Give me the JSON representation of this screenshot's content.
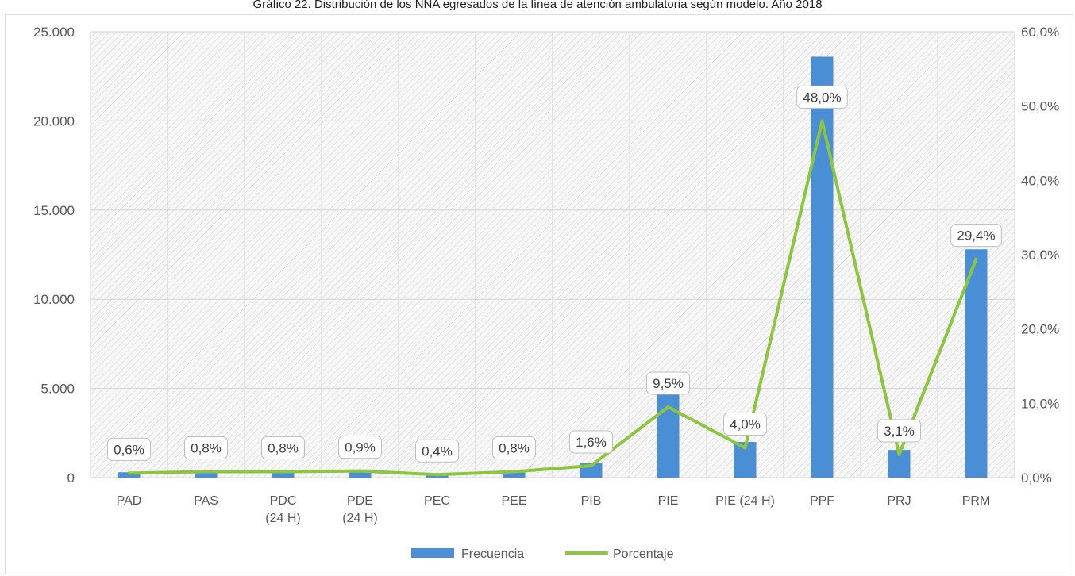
{
  "chart_data": {
    "type": "bar",
    "title": "Gráfico 22. Distribución de los NNA egresados de la línea de atención ambulatoria según modelo. Año 2018",
    "categories": [
      [
        "PAD"
      ],
      [
        "PAS"
      ],
      [
        "PDC",
        "(24 H)"
      ],
      [
        "PDE",
        "(24 H)"
      ],
      [
        "PEC"
      ],
      [
        "PEE"
      ],
      [
        "PIB"
      ],
      [
        "PIE"
      ],
      [
        "PIE (24 H)"
      ],
      [
        "PPF"
      ],
      [
        "PRJ"
      ],
      [
        "PRM"
      ]
    ],
    "series": [
      {
        "name": "Frecuencia",
        "type": "bar",
        "axis": "left",
        "color": "#4a8fd6",
        "values": [
          300,
          400,
          400,
          450,
          200,
          400,
          800,
          4650,
          2000,
          23600,
          1550,
          12800
        ]
      },
      {
        "name": "Porcentaje",
        "type": "line",
        "axis": "right",
        "color": "#8cc63f",
        "values": [
          0.6,
          0.8,
          0.8,
          0.9,
          0.4,
          0.8,
          1.6,
          9.5,
          4.0,
          48.0,
          3.1,
          29.4
        ],
        "labels": [
          "0,6%",
          "0,8%",
          "0,8%",
          "0,9%",
          "0,4%",
          "0,8%",
          "1,6%",
          "9,5%",
          "4,0%",
          "48,0%",
          "3,1%",
          "29,4%"
        ]
      }
    ],
    "y_left": {
      "range": [
        0,
        25000
      ],
      "ticks": [
        0,
        5000,
        10000,
        15000,
        20000,
        25000
      ],
      "tick_labels": [
        "0",
        "5.000",
        "10.000",
        "15.000",
        "20.000",
        "25.000"
      ]
    },
    "y_right": {
      "range": [
        0,
        60
      ],
      "ticks": [
        0,
        10,
        20,
        30,
        40,
        50,
        60
      ],
      "tick_labels": [
        "0,0%",
        "10,0%",
        "20,0%",
        "30,0%",
        "40,0%",
        "50,0%",
        "60,0%"
      ]
    },
    "grid": true,
    "legend": "bottom-center"
  }
}
